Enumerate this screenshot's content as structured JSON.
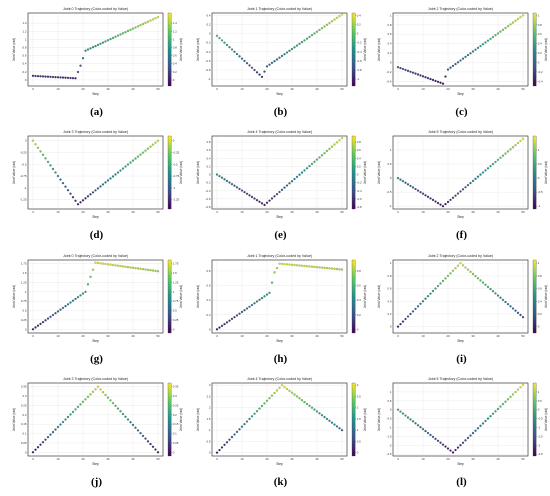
{
  "colorscale": [
    "#440154",
    "#3b528b",
    "#21918c",
    "#5ec962",
    "#fde725"
  ],
  "chart_data": [
    {
      "id": "a",
      "caption": "(a)",
      "type": "scatter",
      "title": "Joint 0 Trajectory (Color-coded by Value)",
      "xlabel": "Step",
      "ylabel": "Joint Value (rad)",
      "colorbar_label": "Joint Value (rad)",
      "xlim": [
        -2,
        52
      ],
      "ylim": [
        -0.15,
        1.65
      ],
      "xticks": [
        0,
        10,
        20,
        30,
        40,
        50
      ],
      "yticks": [
        0.0,
        0.2,
        0.4,
        0.6,
        0.8,
        1.0,
        1.2,
        1.4
      ],
      "cbar_ticks": [
        0.0,
        0.2,
        0.4,
        0.6,
        0.8,
        1.0,
        1.2,
        1.4
      ],
      "knots": [
        [
          0,
          0.1
        ],
        [
          17,
          0.04
        ],
        [
          19,
          0.35
        ],
        [
          21,
          0.72
        ],
        [
          50,
          1.55
        ]
      ]
    },
    {
      "id": "b",
      "caption": "(b)",
      "type": "scatter",
      "title": "Joint 1 Trajectory (Color-coded by Value)",
      "xlabel": "Step",
      "ylabel": "Joint Value (rad)",
      "colorbar_label": "Joint Value (rad)",
      "xlim": [
        -2,
        52
      ],
      "ylim": [
        -1.15,
        0.45
      ],
      "xticks": [
        0,
        10,
        20,
        30,
        40,
        50
      ],
      "yticks": [
        -1.0,
        -0.8,
        -0.6,
        -0.4,
        -0.2,
        0.0,
        0.2,
        0.4
      ],
      "cbar_ticks": [
        -1.0,
        -0.8,
        -0.6,
        -0.4,
        -0.2,
        0.0,
        0.2,
        0.4
      ],
      "knots": [
        [
          0,
          -0.05
        ],
        [
          18,
          -0.95
        ],
        [
          20,
          -0.72
        ],
        [
          50,
          0.42
        ]
      ]
    },
    {
      "id": "c",
      "caption": "(c)",
      "type": "scatter",
      "title": "Joint 2 Trajectory (Color-coded by Value)",
      "xlabel": "Step",
      "ylabel": "Joint Value (rad)",
      "colorbar_label": "Joint Value (rad)",
      "xlim": [
        -2,
        52
      ],
      "ylim": [
        -0.5,
        1.05
      ],
      "xticks": [
        0,
        10,
        20,
        30,
        40,
        50
      ],
      "yticks": [
        -0.4,
        -0.2,
        0.0,
        0.2,
        0.4,
        0.6,
        0.8,
        1.0
      ],
      "cbar_ticks": [
        -0.4,
        -0.2,
        0.0,
        0.2,
        0.4,
        0.6,
        0.8,
        1.0
      ],
      "knots": [
        [
          0,
          -0.1
        ],
        [
          18,
          -0.45
        ],
        [
          20,
          -0.15
        ],
        [
          50,
          1.0
        ]
      ]
    },
    {
      "id": "d",
      "caption": "(d)",
      "type": "scatter",
      "title": "Joint 3 Trajectory (Color-coded by Value)",
      "xlabel": "Step",
      "ylabel": "Joint Value (rad)",
      "colorbar_label": "Joint Value (rad)",
      "xlim": [
        -2,
        52
      ],
      "ylim": [
        -1.45,
        0.1
      ],
      "xticks": [
        0,
        10,
        20,
        30,
        40,
        50
      ],
      "yticks": [
        -1.25,
        -1.0,
        -0.75,
        -0.5,
        -0.25,
        0.0
      ],
      "cbar_ticks": [
        -1.25,
        -1.0,
        -0.75,
        -0.5,
        -0.25,
        0.0
      ],
      "knots": [
        [
          0,
          0.0
        ],
        [
          18,
          -1.35
        ],
        [
          50,
          0.0
        ]
      ]
    },
    {
      "id": "e",
      "caption": "(e)",
      "type": "scatter",
      "title": "Joint 4 Trajectory (Color-coded by Value)",
      "xlabel": "Step",
      "ylabel": "Joint Value (rad)",
      "colorbar_label": "Joint Value (rad)",
      "xlim": [
        -2,
        52
      ],
      "ylim": [
        -0.85,
        0.95
      ],
      "xticks": [
        0,
        10,
        20,
        30,
        40,
        50
      ],
      "yticks": [
        -0.8,
        -0.6,
        -0.4,
        -0.2,
        0.0,
        0.2,
        0.4,
        0.6,
        0.8
      ],
      "cbar_ticks": [
        -0.8,
        -0.6,
        -0.4,
        -0.2,
        0.0,
        0.2,
        0.4,
        0.6,
        0.8
      ],
      "knots": [
        [
          0,
          0.0
        ],
        [
          19,
          -0.75
        ],
        [
          50,
          0.9
        ]
      ]
    },
    {
      "id": "f",
      "caption": "(f)",
      "type": "scatter",
      "title": "Joint 5 Trajectory (Color-coded by Value)",
      "xlabel": "Step",
      "ylabel": "Joint Value (rad)",
      "colorbar_label": "Joint Value (rad)",
      "xlim": [
        -2,
        52
      ],
      "ylim": [
        -1.1,
        1.5
      ],
      "xticks": [
        0,
        10,
        20,
        30,
        40,
        50
      ],
      "yticks": [
        -1.0,
        -0.5,
        0.0,
        0.5,
        1.0
      ],
      "cbar_ticks": [
        -1.0,
        -0.5,
        0.0,
        0.5,
        1.0
      ],
      "knots": [
        [
          0,
          0.0
        ],
        [
          18,
          -1.0
        ],
        [
          50,
          1.4
        ]
      ]
    },
    {
      "id": "g",
      "caption": "(g)",
      "type": "scatter",
      "title": "Joint 0 Trajectory (Color-coded by Value)",
      "xlabel": "Step",
      "ylabel": "Joint Value (rad)",
      "colorbar_label": "Joint Value (rad)",
      "xlim": [
        -2,
        52
      ],
      "ylim": [
        -0.1,
        1.85
      ],
      "xticks": [
        0,
        10,
        20,
        30,
        40,
        50
      ],
      "yticks": [
        0.0,
        0.25,
        0.5,
        0.75,
        1.0,
        1.25,
        1.5,
        1.75
      ],
      "cbar_ticks": [
        0.0,
        0.25,
        0.5,
        0.75,
        1.0,
        1.25,
        1.5,
        1.75
      ],
      "knots": [
        [
          0,
          0.0
        ],
        [
          21,
          1.0
        ],
        [
          23,
          1.4
        ],
        [
          25,
          1.78
        ],
        [
          50,
          1.55
        ]
      ]
    },
    {
      "id": "h",
      "caption": "(h)",
      "type": "scatter",
      "title": "Joint 1 Trajectory (Color-coded by Value)",
      "xlabel": "Step",
      "ylabel": "Joint Value (rad)",
      "colorbar_label": "Joint Value (rad)",
      "xlim": [
        -2,
        52
      ],
      "ylim": [
        -0.05,
        0.95
      ],
      "xticks": [
        0,
        10,
        20,
        30,
        40,
        50
      ],
      "yticks": [
        0.0,
        0.2,
        0.4,
        0.6,
        0.8
      ],
      "cbar_ticks": [
        0.0,
        0.2,
        0.4,
        0.6,
        0.8
      ],
      "knots": [
        [
          0,
          0.0
        ],
        [
          21,
          0.5
        ],
        [
          23,
          0.78
        ],
        [
          25,
          0.9
        ],
        [
          50,
          0.82
        ]
      ]
    },
    {
      "id": "i",
      "caption": "(i)",
      "type": "scatter",
      "title": "Joint 2 Trajectory (Color-coded by Value)",
      "xlabel": "Step",
      "ylabel": "Joint Value (rad)",
      "colorbar_label": "Joint Value (rad)",
      "xlim": [
        -2,
        52
      ],
      "ylim": [
        -0.1,
        1.05
      ],
      "xticks": [
        0,
        10,
        20,
        30,
        40,
        50
      ],
      "yticks": [
        0.0,
        0.2,
        0.4,
        0.6,
        0.8,
        1.0
      ],
      "cbar_ticks": [
        0.0,
        0.2,
        0.4,
        0.6,
        0.8,
        1.0
      ],
      "knots": [
        [
          0,
          0.0
        ],
        [
          25,
          1.0
        ],
        [
          50,
          0.15
        ]
      ]
    },
    {
      "id": "j",
      "caption": "(j)",
      "type": "scatter",
      "title": "Joint 3 Trajectory (Color-coded by Value)",
      "xlabel": "Step",
      "ylabel": "Joint Value (rad)",
      "colorbar_label": "Joint Value (rad)",
      "xlim": [
        -2,
        52
      ],
      "ylim": [
        -0.02,
        0.37
      ],
      "xticks": [
        0,
        10,
        20,
        30,
        40,
        50
      ],
      "yticks": [
        0.0,
        0.05,
        0.1,
        0.15,
        0.2,
        0.25,
        0.3,
        0.35
      ],
      "cbar_ticks": [
        0.0,
        0.05,
        0.1,
        0.15,
        0.2,
        0.25,
        0.3,
        0.35
      ],
      "knots": [
        [
          0,
          0.0
        ],
        [
          26,
          0.35
        ],
        [
          50,
          0.0
        ]
      ]
    },
    {
      "id": "k",
      "caption": "(k)",
      "type": "scatter",
      "title": "Joint 4 Trajectory (Color-coded by Value)",
      "xlabel": "Step",
      "ylabel": "Joint Value (rad)",
      "colorbar_label": "Joint Value (rad)",
      "xlim": [
        -2,
        52
      ],
      "ylim": [
        -0.15,
        3.1
      ],
      "xticks": [
        0,
        10,
        20,
        30,
        40,
        50
      ],
      "yticks": [
        0.0,
        0.5,
        1.0,
        1.5,
        2.0,
        2.5,
        3.0
      ],
      "cbar_ticks": [
        0.0,
        0.5,
        1.0,
        1.5,
        2.0,
        2.5,
        3.0
      ],
      "knots": [
        [
          0,
          0.0
        ],
        [
          26,
          3.0
        ],
        [
          50,
          1.0
        ]
      ]
    },
    {
      "id": "l",
      "caption": "(l)",
      "type": "scatter",
      "title": "Joint 5 Trajectory (Color-coded by Value)",
      "xlabel": "Step",
      "ylabel": "Joint Value (rad)",
      "colorbar_label": "Joint Value (rad)",
      "xlim": [
        -2,
        52
      ],
      "ylim": [
        -2.6,
        1.5
      ],
      "xticks": [
        0,
        10,
        20,
        30,
        40,
        50
      ],
      "yticks": [
        -2.5,
        -2.0,
        -1.5,
        -1.0,
        -0.5,
        0.0,
        0.5,
        1.0
      ],
      "cbar_ticks": [
        -2.5,
        -2.0,
        -1.5,
        -1.0,
        -0.5,
        0.0,
        0.5,
        1.0
      ],
      "knots": [
        [
          0,
          0.0
        ],
        [
          22,
          -2.4
        ],
        [
          50,
          1.4
        ]
      ]
    }
  ]
}
